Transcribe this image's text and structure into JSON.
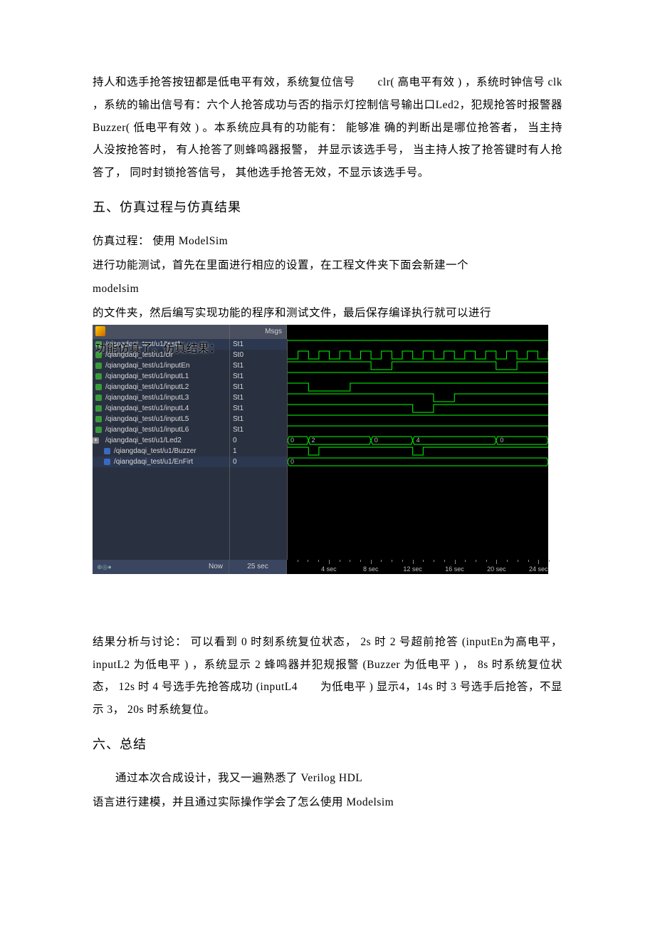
{
  "document": {
    "para1": "持人和选手抢答按钮都是低电平有效，系统复位信号　　clr( 高电平有效 ) ，系统时钟信号 clk ，系统的输出信号有：六个人抢答成功与否的指示灯控制信号输出口Led2，犯规抢答时报警器  Buzzer( 低电平有效 ) 。本系统应具有的功能有： 能够准 确的判断出是哪位抢答者， 当主持人没按抢答时，  有人抢答了则蜂鸣器报警，  并显示该选手号，  当主持人按了抢答键时有人抢答了，   同时封锁抢答信号，  其他选手抢答无效，不显示该选手号。",
    "heading5": "五、仿真过程与仿真结果",
    "para2a": "仿真过程：  使用 ModelSim",
    "para2b": "进行功能测试，首先在里面进行相应的设置，在工程文件夹下面会新建一个",
    "para2c": "modelsim",
    "para2d": "的文件夹，然后编写实现功能的程序和测试文件，最后保存编译执行就可以进行",
    "overlap": "功能仿真了。仿真结果：",
    "para3": "结果分析与讨论：  可以看到 0 时刻系统复位状态， 2s 时 2 号超前抢答 (inputEn为高电平，  inputL2 为低电平 ) ，系统显示 2 蜂鸣器并犯规报警 (Buzzer 为低电平 ) ， 8s 时系统复位状态， 12s 时 4 号选手先抢答成功 (inputL4　　为低电平 ) 显示4，14s 时 3 号选手后抢答，不显示   3，  20s 时系统复位。",
    "heading6": "六、总结",
    "para4a": "通过本次合成设计，我又一遍熟悉了 Verilog HDL",
    "para4b": "语言进行建模，并且通过实际操作学会了怎么使用 Modelsim"
  },
  "waveform": {
    "msgs_label": "Msgs",
    "now_label": "Now",
    "now_value": "25 sec",
    "colors": {
      "signal_line": "#00ff00",
      "bus_fill": "#003300",
      "grid": "#333333",
      "bg": "#000000",
      "panel": "#293040",
      "text": "#d8d8d8"
    },
    "time_range_sec": 25,
    "ruler_ticks": [
      {
        "label": "4 sec",
        "pos": 4
      },
      {
        "label": "8 sec",
        "pos": 8
      },
      {
        "label": "12 sec",
        "pos": 12
      },
      {
        "label": "16 sec",
        "pos": 16
      },
      {
        "label": "20 sec",
        "pos": 20
      },
      {
        "label": "24 sec",
        "pos": 24
      }
    ],
    "signals": [
      {
        "name": "/qiangdaqi_test/u1/test1",
        "val": "St1",
        "type": "line",
        "icon": "green",
        "edges": [
          [
            0,
            1
          ]
        ],
        "selected": true
      },
      {
        "name": "/qiangdaqi_test/u1/clr",
        "val": "St0",
        "type": "clock",
        "icon": "green",
        "edges": [
          [
            0,
            0
          ],
          [
            1,
            1
          ],
          [
            2,
            0
          ],
          [
            3,
            1
          ],
          [
            4,
            0
          ],
          [
            5,
            1
          ],
          [
            6,
            0
          ],
          [
            7,
            1
          ],
          [
            8,
            0
          ],
          [
            9,
            1
          ],
          [
            10,
            0
          ],
          [
            11,
            1
          ],
          [
            12,
            0
          ],
          [
            13,
            1
          ],
          [
            14,
            0
          ],
          [
            15,
            1
          ],
          [
            16,
            0
          ],
          [
            17,
            1
          ],
          [
            18,
            0
          ],
          [
            19,
            1
          ],
          [
            20,
            0
          ],
          [
            21,
            1
          ],
          [
            22,
            0
          ],
          [
            23,
            1
          ],
          [
            24,
            0
          ],
          [
            25,
            1
          ]
        ]
      },
      {
        "name": "/qiangdaqi_test/u1/inputEn",
        "val": "St1",
        "type": "line",
        "icon": "green",
        "edges": [
          [
            0,
            1
          ],
          [
            8,
            0
          ],
          [
            10,
            1
          ],
          [
            20,
            0
          ],
          [
            22,
            1
          ]
        ]
      },
      {
        "name": "/qiangdaqi_test/u1/inputL1",
        "val": "St1",
        "type": "line",
        "icon": "green",
        "edges": [
          [
            0,
            1
          ]
        ]
      },
      {
        "name": "/qiangdaqi_test/u1/inputL2",
        "val": "St1",
        "type": "line",
        "icon": "green",
        "edges": [
          [
            0,
            1
          ],
          [
            2,
            0
          ],
          [
            6,
            1
          ]
        ]
      },
      {
        "name": "/qiangdaqi_test/u1/inputL3",
        "val": "St1",
        "type": "line",
        "icon": "green",
        "edges": [
          [
            0,
            1
          ],
          [
            14,
            0
          ],
          [
            16,
            1
          ]
        ]
      },
      {
        "name": "/qiangdaqi_test/u1/inputL4",
        "val": "St1",
        "type": "line",
        "icon": "green",
        "edges": [
          [
            0,
            1
          ],
          [
            12,
            0
          ],
          [
            14,
            1
          ]
        ]
      },
      {
        "name": "/qiangdaqi_test/u1/inputL5",
        "val": "St1",
        "type": "line",
        "icon": "green",
        "edges": [
          [
            0,
            1
          ]
        ]
      },
      {
        "name": "/qiangdaqi_test/u1/inputL6",
        "val": "St1",
        "type": "line",
        "icon": "green",
        "edges": [
          [
            0,
            1
          ]
        ]
      },
      {
        "name": "/qiangdaqi_test/u1/Led2",
        "val": "0",
        "type": "bus",
        "icon": "expand",
        "bus_vals": [
          [
            0,
            "0"
          ],
          [
            2,
            "2"
          ],
          [
            8,
            "0"
          ],
          [
            12,
            "4"
          ],
          [
            20,
            "0"
          ]
        ]
      },
      {
        "name": "/qiangdaqi_test/u1/Buzzer",
        "val": "1",
        "type": "line",
        "icon": "blue",
        "edges": [
          [
            0,
            1
          ],
          [
            2,
            0
          ],
          [
            3,
            1
          ],
          [
            12,
            0
          ],
          [
            13,
            1
          ]
        ],
        "indent": true
      },
      {
        "name": "/qiangdaqi_test/u1/EnFirt",
        "val": "0",
        "type": "bus",
        "icon": "blue",
        "bus_vals": [
          [
            0,
            "0"
          ]
        ],
        "indent": true,
        "selected": true
      }
    ]
  }
}
